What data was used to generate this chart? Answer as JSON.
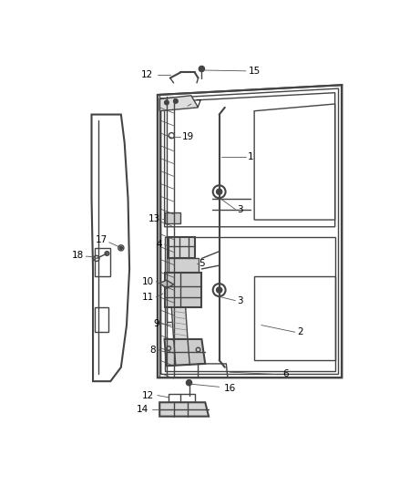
{
  "bg_color": "#ffffff",
  "line_color": "#444444",
  "label_color": "#000000",
  "fig_width": 4.38,
  "fig_height": 5.33,
  "dpi": 100
}
